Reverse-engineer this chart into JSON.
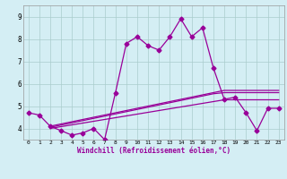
{
  "xlabel": "Windchill (Refroidissement éolien,°C)",
  "x_hours": [
    0,
    1,
    2,
    3,
    4,
    5,
    6,
    7,
    8,
    9,
    10,
    11,
    12,
    13,
    14,
    15,
    16,
    17,
    18,
    19,
    20,
    21,
    22,
    23
  ],
  "main_y": [
    4.7,
    4.6,
    4.1,
    3.9,
    3.7,
    3.8,
    4.0,
    3.5,
    5.6,
    7.8,
    8.1,
    7.7,
    7.5,
    8.1,
    8.9,
    8.1,
    8.5,
    6.7,
    5.3,
    5.4,
    4.7,
    3.9,
    4.9,
    4.9
  ],
  "line2_start": 2,
  "line2_y": [
    4.1,
    4.2,
    4.3,
    4.4,
    4.5,
    4.6,
    4.7,
    4.8,
    4.9,
    5.0,
    5.1,
    5.2,
    5.3,
    5.4,
    5.5,
    5.6,
    5.7,
    5.7,
    5.7,
    5.7,
    5.7,
    5.7
  ],
  "line3_start": 2,
  "line3_y": [
    4.05,
    4.15,
    4.25,
    4.35,
    4.45,
    4.55,
    4.65,
    4.75,
    4.85,
    4.95,
    5.05,
    5.15,
    5.25,
    5.35,
    5.45,
    5.55,
    5.6,
    5.6,
    5.6,
    5.6,
    5.6,
    5.6
  ],
  "line4_start": 2,
  "line4_y": [
    4.0,
    4.08,
    4.16,
    4.24,
    4.32,
    4.4,
    4.48,
    4.56,
    4.64,
    4.72,
    4.8,
    4.88,
    4.96,
    5.04,
    5.12,
    5.2,
    5.28,
    5.28,
    5.28,
    5.28,
    5.28,
    5.28
  ],
  "ylim": [
    3.5,
    9.5
  ],
  "xlim": [
    -0.5,
    23.5
  ],
  "line_color": "#990099",
  "bg_color": "#d4eef4",
  "grid_color": "#aacccc",
  "marker": "D",
  "marker_size": 2.5,
  "line_width": 0.9,
  "yticks": [
    4,
    5,
    6,
    7,
    8,
    9
  ],
  "xticks": [
    0,
    1,
    2,
    3,
    4,
    5,
    6,
    7,
    8,
    9,
    10,
    11,
    12,
    13,
    14,
    15,
    16,
    17,
    18,
    19,
    20,
    21,
    22,
    23
  ]
}
